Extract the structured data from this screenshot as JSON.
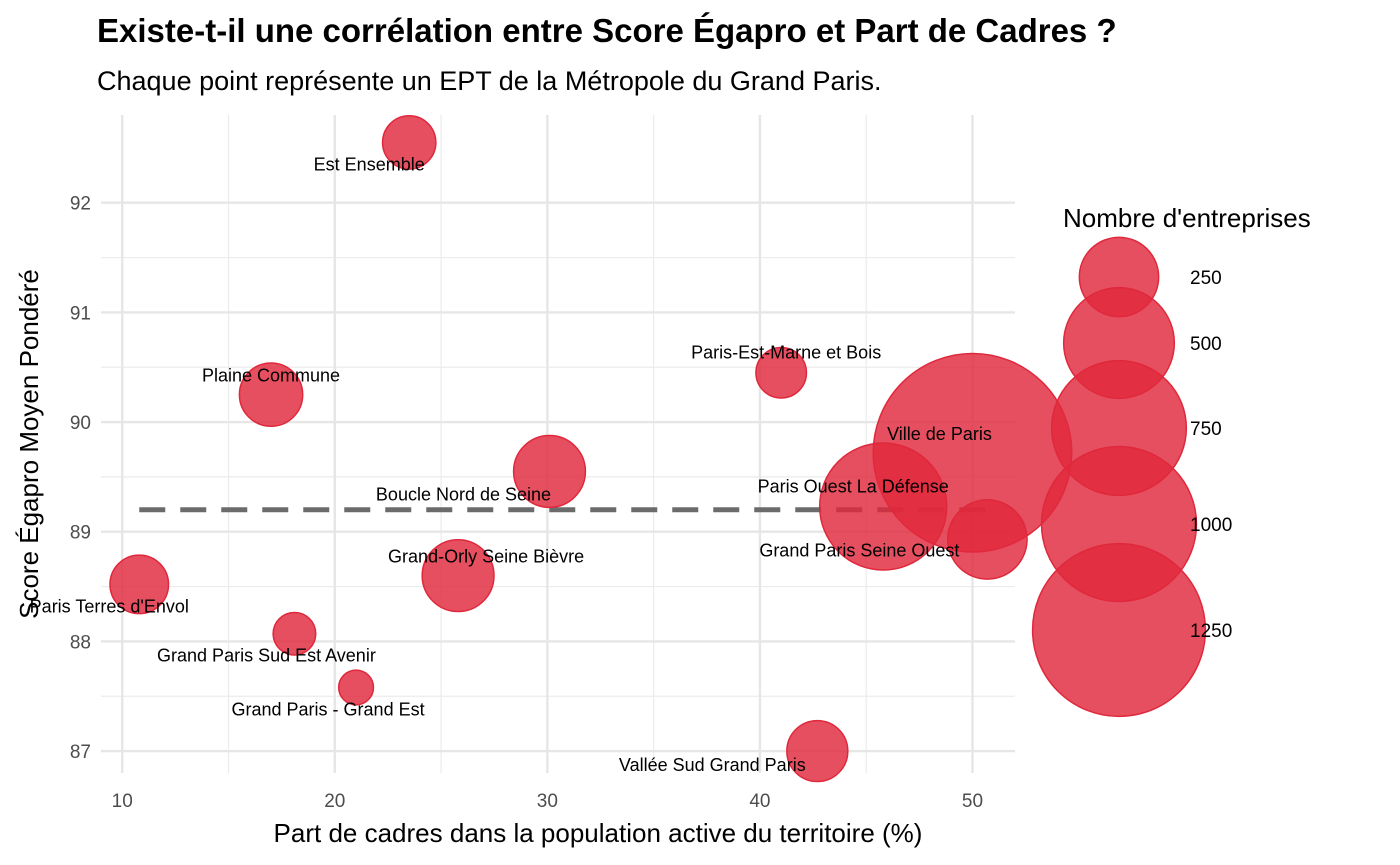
{
  "chart_data": {
    "type": "scatter",
    "title": "Existe-t-il une corrélation entre Score Égapro et Part de Cadres ?",
    "subtitle": "Chaque point représente un EPT de la Métropole du Grand Paris.",
    "xlabel": "Part de cadres dans la population active du territoire (%)",
    "ylabel": "Score Égapro Moyen Pondéré",
    "xlim": [
      9,
      52
    ],
    "ylim": [
      86.8,
      92.8
    ],
    "xticks": [
      10,
      20,
      30,
      40,
      50
    ],
    "yticks": [
      87,
      88,
      89,
      90,
      91,
      92
    ],
    "grid": true,
    "reference_line": {
      "y": 89.2,
      "style": "dashed",
      "x_range": [
        10.8,
        50.7
      ]
    },
    "point_color": "#E0283C",
    "points": [
      {
        "label": "Est Ensemble",
        "x": 23.5,
        "y": 92.55,
        "n": 90
      },
      {
        "label": "Paris-Est-Marne et Bois",
        "x": 41.0,
        "y": 90.45,
        "n": 80
      },
      {
        "label": "Plaine Commune",
        "x": 17.0,
        "y": 90.25,
        "n": 130
      },
      {
        "label": "Ville de Paris",
        "x": 50.0,
        "y": 89.72,
        "n": 1400
      },
      {
        "label": "Boucle Nord de Seine",
        "x": 30.1,
        "y": 89.55,
        "n": 170
      },
      {
        "label": "Paris Ouest La Défense",
        "x": 45.8,
        "y": 89.23,
        "n": 560
      },
      {
        "label": "Grand Paris Seine Ouest",
        "x": 50.7,
        "y": 88.93,
        "n": 210
      },
      {
        "label": "Grand-Orly Seine Bièvre",
        "x": 25.8,
        "y": 88.6,
        "n": 170
      },
      {
        "label": "Paris Terres d'Envol",
        "x": 10.8,
        "y": 88.52,
        "n": 110
      },
      {
        "label": "Grand Paris Sud Est Avenir",
        "x": 18.1,
        "y": 88.07,
        "n": 55
      },
      {
        "label": "Grand Paris - Grand Est",
        "x": 21.0,
        "y": 87.58,
        "n": 35
      },
      {
        "label": "Vallée Sud Grand Paris",
        "x": 42.7,
        "y": 87.0,
        "n": 120
      }
    ],
    "legend": {
      "title": "Nombre d'entreprises",
      "placement": "right",
      "items": [
        {
          "label": "250",
          "value": 250
        },
        {
          "label": "500",
          "value": 500
        },
        {
          "label": "750",
          "value": 750
        },
        {
          "label": "1000",
          "value": 1000
        },
        {
          "label": "1250",
          "value": 1250
        }
      ]
    }
  }
}
